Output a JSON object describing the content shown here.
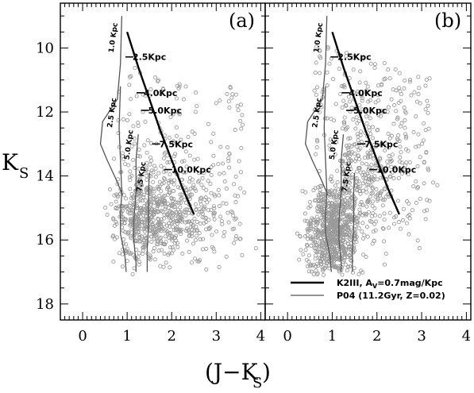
{
  "chart_data": {
    "type": "scatter",
    "xlabel": "(J−K",
    "xlabel_sub": "S",
    "xlabel_close": ")",
    "ylabel": "K",
    "ylabel_sub": "S",
    "xlim": [
      -0.5,
      4.1
    ],
    "ylim": [
      18.5,
      8.6
    ],
    "y_inverted": true,
    "xticks": [
      0,
      1,
      2,
      3,
      4
    ],
    "xtick_labels": [
      "0",
      "1",
      "2",
      "3",
      "4"
    ],
    "yticks": [
      10,
      12,
      14,
      16,
      18
    ],
    "ytick_labels": [
      "10",
      "12",
      "14",
      "16",
      "18"
    ],
    "marker_color": "#9a9a9a",
    "panels": [
      {
        "tag": "(a)",
        "clump_track": {
          "points": [
            [
              1.0,
              9.5
            ],
            [
              1.25,
              10.6
            ],
            [
              1.5,
              11.6
            ],
            [
              1.75,
              12.6
            ],
            [
              2.0,
              13.5
            ],
            [
              2.25,
              14.4
            ],
            [
              2.5,
              15.2
            ]
          ],
          "markers": [
            {
              "label": "2.5Kpc",
              "x": 1.05,
              "y": 10.28
            },
            {
              "label": "4.0Kpc",
              "x": 1.3,
              "y": 11.4
            },
            {
              "label": "5.0Kpc",
              "x": 1.4,
              "y": 11.95
            },
            {
              "label": "7.5Kpc",
              "x": 1.65,
              "y": 13.0
            },
            {
              "label": "10.0Kpc",
              "x": 1.92,
              "y": 13.8
            }
          ]
        },
        "isochrones": [
          {
            "label": "1.0 Kpc",
            "points": [
              [
                0.88,
                9.0
              ],
              [
                0.85,
                10.5
              ],
              [
                0.78,
                11.6
              ],
              [
                0.45,
                12.3
              ],
              [
                0.4,
                13.0
              ],
              [
                0.55,
                13.5
              ],
              [
                0.75,
                14.1
              ],
              [
                0.9,
                14.6
              ]
            ]
          },
          {
            "label": "2.5 Kpc",
            "points": [
              [
                0.85,
                11.2
              ],
              [
                0.82,
                12.5
              ],
              [
                0.85,
                13.5
              ],
              [
                0.88,
                14.5
              ],
              [
                0.85,
                15.2
              ],
              [
                0.85,
                15.8
              ],
              [
                0.95,
                16.5
              ],
              [
                0.98,
                17.0
              ]
            ]
          },
          {
            "label": "5.0 Kpc",
            "points": [
              [
                1.25,
                12.7
              ],
              [
                1.2,
                13.5
              ],
              [
                1.2,
                14.5
              ],
              [
                1.15,
                15.4
              ],
              [
                1.15,
                16.0
              ],
              [
                1.2,
                16.7
              ],
              [
                1.2,
                17.0
              ]
            ]
          },
          {
            "label": "7.5 Kpc",
            "points": [
              [
                1.5,
                13.9
              ],
              [
                1.48,
                14.5
              ],
              [
                1.48,
                15.5
              ],
              [
                1.45,
                16.3
              ],
              [
                1.45,
                17.0
              ]
            ]
          }
        ]
      },
      {
        "tag": "(b)",
        "clump_track": {
          "points": [
            [
              1.0,
              9.5
            ],
            [
              1.25,
              10.6
            ],
            [
              1.5,
              11.6
            ],
            [
              1.75,
              12.6
            ],
            [
              2.0,
              13.5
            ],
            [
              2.25,
              14.4
            ],
            [
              2.5,
              15.2
            ]
          ],
          "markers": [
            {
              "label": "2.5Kpc",
              "x": 1.05,
              "y": 10.28
            },
            {
              "label": "4.0Kpc",
              "x": 1.3,
              "y": 11.4
            },
            {
              "label": "5.0Kpc",
              "x": 1.4,
              "y": 11.95
            },
            {
              "label": "7.5Kpc",
              "x": 1.65,
              "y": 13.0
            },
            {
              "label": "10.0Kpc",
              "x": 1.92,
              "y": 13.8
            }
          ]
        },
        "isochrones": [
          {
            "label": "1.0 Kpc",
            "points": [
              [
                0.88,
                9.0
              ],
              [
                0.85,
                10.5
              ],
              [
                0.78,
                11.6
              ],
              [
                0.45,
                12.3
              ],
              [
                0.4,
                13.0
              ],
              [
                0.55,
                13.5
              ],
              [
                0.75,
                14.1
              ],
              [
                0.9,
                14.6
              ]
            ]
          },
          {
            "label": "2.5 Kpc",
            "points": [
              [
                0.85,
                11.2
              ],
              [
                0.82,
                12.5
              ],
              [
                0.85,
                13.5
              ],
              [
                0.88,
                14.5
              ],
              [
                0.85,
                15.2
              ],
              [
                0.85,
                15.8
              ],
              [
                0.95,
                16.5
              ],
              [
                0.98,
                17.0
              ]
            ]
          },
          {
            "label": "5.0 Kpc",
            "points": [
              [
                1.25,
                12.7
              ],
              [
                1.2,
                13.5
              ],
              [
                1.2,
                14.5
              ],
              [
                1.15,
                15.4
              ],
              [
                1.15,
                16.0
              ],
              [
                1.2,
                16.7
              ],
              [
                1.2,
                17.0
              ]
            ]
          },
          {
            "label": "7.5 Kpc",
            "points": [
              [
                1.5,
                13.9
              ],
              [
                1.48,
                14.5
              ],
              [
                1.48,
                15.5
              ],
              [
                1.45,
                16.3
              ],
              [
                1.45,
                17.0
              ]
            ]
          }
        ],
        "legend": [
          {
            "label_main": "K2III, A",
            "label_sub": "V",
            "label_rest": "=0.7mag/Kpc",
            "style": "thick"
          },
          {
            "label_main": "P04 (11.2Gyr, Z=0.02)",
            "label_sub": "",
            "label_rest": "",
            "style": "thin"
          }
        ],
        "legend_position": "bottom-right"
      }
    ]
  }
}
